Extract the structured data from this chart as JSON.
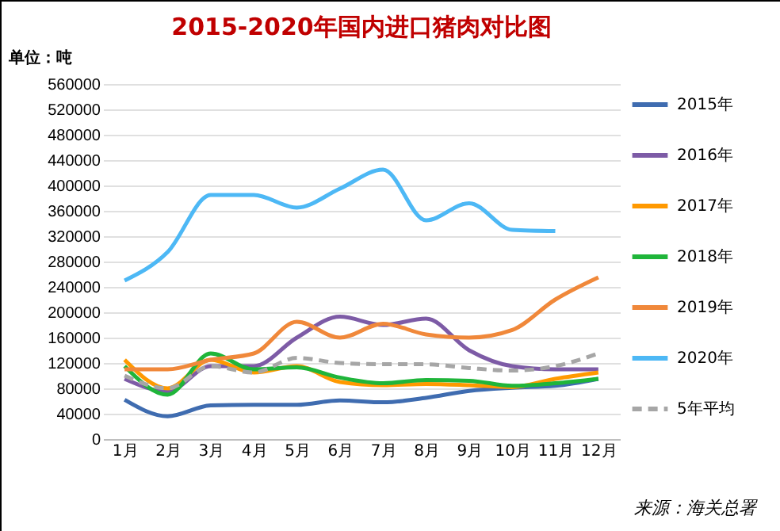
{
  "chart_data": {
    "type": "line",
    "title": "2015-2020年国内进口猪肉对比图",
    "ylabel": "单位：吨",
    "annotations": [
      "来源：海关总署"
    ],
    "categories": [
      "1月",
      "2月",
      "3月",
      "4月",
      "5月",
      "6月",
      "7月",
      "8月",
      "9月",
      "10月",
      "11月",
      "12月"
    ],
    "series": [
      {
        "name": "2015年",
        "color": "#3f6cb0",
        "values": [
          62000,
          36000,
          53000,
          54000,
          54000,
          61000,
          58000,
          65000,
          76000,
          81000,
          84000,
          95000
        ]
      },
      {
        "name": "2016年",
        "color": "#7d5ba6",
        "values": [
          95000,
          75000,
          115000,
          115000,
          160000,
          193000,
          180000,
          190000,
          140000,
          115000,
          110000,
          110000
        ]
      },
      {
        "name": "2017年",
        "color": "#ff9900",
        "values": [
          125000,
          80000,
          125000,
          105000,
          115000,
          90000,
          85000,
          87000,
          85000,
          82000,
          95000,
          105000
        ]
      },
      {
        "name": "2018年",
        "color": "#1fb53a",
        "values": [
          115000,
          70000,
          135000,
          110000,
          113000,
          97000,
          88000,
          93000,
          92000,
          84000,
          88000,
          95000
        ]
      },
      {
        "name": "2019年",
        "color": "#f0883a",
        "values": [
          110000,
          110000,
          125000,
          135000,
          185000,
          160000,
          182000,
          165000,
          160000,
          172000,
          220000,
          255000
        ]
      },
      {
        "name": "2020年",
        "color": "#4db8f5",
        "values": [
          250000,
          295000,
          385000,
          385000,
          365000,
          395000,
          425000,
          345000,
          372000,
          330000,
          328000,
          null
        ]
      },
      {
        "name": "5年平均",
        "color": "#a6a6a6",
        "line_style": "dashed",
        "values": [
          100000,
          80000,
          115000,
          105000,
          128000,
          120000,
          118000,
          118000,
          112000,
          108000,
          115000,
          135000
        ]
      }
    ],
    "ylim": [
      0,
      560000
    ],
    "yticks": [
      0,
      40000,
      80000,
      120000,
      160000,
      200000,
      240000,
      280000,
      320000,
      360000,
      400000,
      440000,
      480000,
      520000,
      560000
    ],
    "grid": "y",
    "legend": "right",
    "line_style": "solid"
  }
}
